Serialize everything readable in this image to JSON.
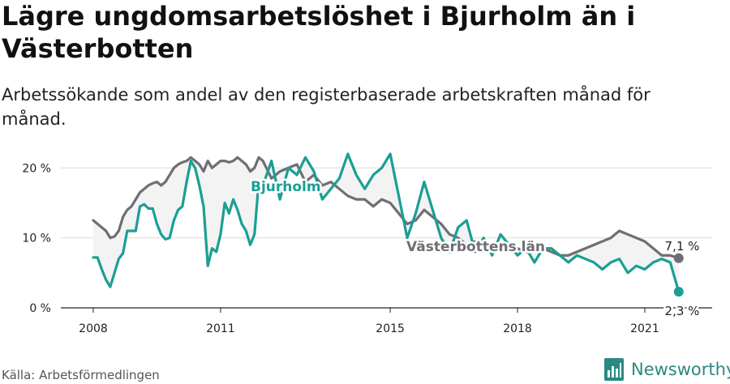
{
  "title": "Lägre ungdomsarbetslöshet i Bjurholm än i Västerbotten",
  "subtitle": "Arbetssökande som andel av den registerbaserade arbetskraften månad för månad.",
  "source": "Källa: Arbetsförmedlingen",
  "brand": "Newsworthy",
  "colors": {
    "bjurholm": "#1a9f93",
    "lan": "#6f6f73",
    "fill": "#f3f3f3",
    "grid": "#dcdcdc",
    "brand": "#2a8a82"
  },
  "chart_data": {
    "type": "line",
    "title": "Lägre ungdomsarbetslöshet i Bjurholm än i Västerbotten",
    "xlabel": "",
    "ylabel": "",
    "xlim": [
      2008,
      2021.9
    ],
    "ylim": [
      0,
      22
    ],
    "x_ticks": [
      {
        "value": 2008,
        "label": "2008"
      },
      {
        "value": 2011,
        "label": "2011"
      },
      {
        "value": 2015,
        "label": "2015"
      },
      {
        "value": 2018,
        "label": "2018"
      },
      {
        "value": 2021,
        "label": "2021"
      }
    ],
    "y_ticks": [
      {
        "value": 0,
        "label": "0 %"
      },
      {
        "value": 10,
        "label": "10 %"
      },
      {
        "value": 20,
        "label": "20 %"
      }
    ],
    "series": [
      {
        "name": "Bjurholm",
        "label": "Bjurholm",
        "end_label": "2,3 %",
        "x": [
          2008.0,
          2008.1,
          2008.2,
          2008.3,
          2008.4,
          2008.5,
          2008.6,
          2008.7,
          2008.8,
          2008.9,
          2009.0,
          2009.1,
          2009.2,
          2009.3,
          2009.4,
          2009.5,
          2009.6,
          2009.7,
          2009.8,
          2009.9,
          2010.0,
          2010.1,
          2010.2,
          2010.3,
          2010.4,
          2010.5,
          2010.6,
          2010.7,
          2010.8,
          2010.9,
          2011.0,
          2011.1,
          2011.2,
          2011.3,
          2011.4,
          2011.5,
          2011.6,
          2011.7,
          2011.8,
          2011.9,
          2012.0,
          2012.2,
          2012.4,
          2012.6,
          2012.8,
          2013.0,
          2013.2,
          2013.4,
          2013.6,
          2013.8,
          2014.0,
          2014.2,
          2014.4,
          2014.6,
          2014.8,
          2015.0,
          2015.2,
          2015.4,
          2015.6,
          2015.8,
          2016.0,
          2016.2,
          2016.4,
          2016.6,
          2016.8,
          2017.0,
          2017.2,
          2017.4,
          2017.6,
          2017.8,
          2018.0,
          2018.2,
          2018.4,
          2018.6,
          2018.8,
          2019.0,
          2019.2,
          2019.4,
          2019.6,
          2019.8,
          2020.0,
          2020.2,
          2020.4,
          2020.6,
          2020.8,
          2021.0,
          2021.2,
          2021.4,
          2021.6,
          2021.8
        ],
        "values": [
          7.2,
          7.2,
          5.5,
          4.0,
          3.0,
          5.0,
          7.0,
          7.8,
          11.0,
          11.0,
          11.0,
          14.5,
          14.8,
          14.2,
          14.2,
          12.0,
          10.5,
          9.8,
          10.0,
          12.5,
          14.0,
          14.5,
          18.0,
          21.0,
          20.0,
          17.5,
          14.5,
          6.0,
          8.5,
          8.0,
          10.5,
          15.0,
          13.5,
          15.5,
          14.0,
          12.0,
          11.0,
          9.0,
          10.5,
          18.0,
          17.5,
          21.0,
          15.5,
          20.0,
          19.0,
          21.5,
          19.5,
          15.5,
          17.0,
          18.5,
          22.0,
          19.0,
          17.0,
          19.0,
          20.0,
          22.0,
          16.0,
          10.0,
          13.5,
          18.0,
          14.0,
          10.0,
          8.0,
          11.5,
          12.5,
          8.0,
          10.0,
          7.5,
          10.5,
          9.0,
          7.5,
          8.5,
          6.5,
          8.5,
          8.5,
          7.5,
          6.5,
          7.5,
          7.0,
          6.5,
          5.5,
          6.5,
          7.0,
          5.0,
          6.0,
          5.5,
          6.5,
          7.0,
          6.5,
          2.3
        ]
      },
      {
        "name": "Västerbottens län",
        "label": "Västerbottens län",
        "end_label": "7,1 %",
        "x": [
          2008.0,
          2008.1,
          2008.2,
          2008.3,
          2008.4,
          2008.5,
          2008.6,
          2008.7,
          2008.8,
          2008.9,
          2009.0,
          2009.1,
          2009.2,
          2009.3,
          2009.4,
          2009.5,
          2009.6,
          2009.7,
          2009.8,
          2009.9,
          2010.0,
          2010.1,
          2010.2,
          2010.3,
          2010.4,
          2010.5,
          2010.6,
          2010.7,
          2010.8,
          2010.9,
          2011.0,
          2011.1,
          2011.2,
          2011.3,
          2011.4,
          2011.5,
          2011.6,
          2011.7,
          2011.8,
          2011.9,
          2012.0,
          2012.2,
          2012.4,
          2012.6,
          2012.8,
          2013.0,
          2013.2,
          2013.4,
          2013.6,
          2013.8,
          2014.0,
          2014.2,
          2014.4,
          2014.6,
          2014.8,
          2015.0,
          2015.2,
          2015.4,
          2015.6,
          2015.8,
          2016.0,
          2016.2,
          2016.4,
          2016.6,
          2016.8,
          2017.0,
          2017.2,
          2017.4,
          2017.6,
          2017.8,
          2018.0,
          2018.2,
          2018.4,
          2018.6,
          2018.8,
          2019.0,
          2019.2,
          2019.4,
          2019.6,
          2019.8,
          2020.0,
          2020.2,
          2020.4,
          2020.6,
          2020.8,
          2021.0,
          2021.2,
          2021.4,
          2021.6,
          2021.8
        ],
        "values": [
          12.5,
          12.0,
          11.5,
          11.0,
          10.0,
          10.2,
          11.0,
          13.0,
          14.0,
          14.5,
          15.5,
          16.5,
          17.0,
          17.5,
          17.8,
          18.0,
          17.5,
          18.0,
          19.0,
          20.0,
          20.5,
          20.8,
          21.0,
          21.5,
          21.0,
          20.5,
          19.5,
          21.0,
          20.0,
          20.5,
          21.0,
          21.0,
          20.8,
          21.0,
          21.5,
          21.0,
          20.5,
          19.5,
          20.0,
          21.5,
          21.0,
          18.5,
          19.5,
          20.0,
          20.5,
          18.0,
          19.0,
          17.5,
          18.0,
          17.0,
          16.0,
          15.5,
          15.5,
          14.5,
          15.5,
          15.0,
          13.5,
          12.0,
          12.5,
          14.0,
          13.0,
          12.0,
          10.5,
          10.0,
          9.0,
          9.5,
          8.5,
          8.0,
          8.5,
          9.0,
          8.5,
          8.0,
          8.0,
          8.5,
          8.0,
          7.5,
          7.5,
          8.0,
          8.5,
          9.0,
          9.5,
          10.0,
          11.0,
          10.5,
          10.0,
          9.5,
          8.5,
          7.5,
          7.5,
          7.1
        ]
      }
    ]
  }
}
